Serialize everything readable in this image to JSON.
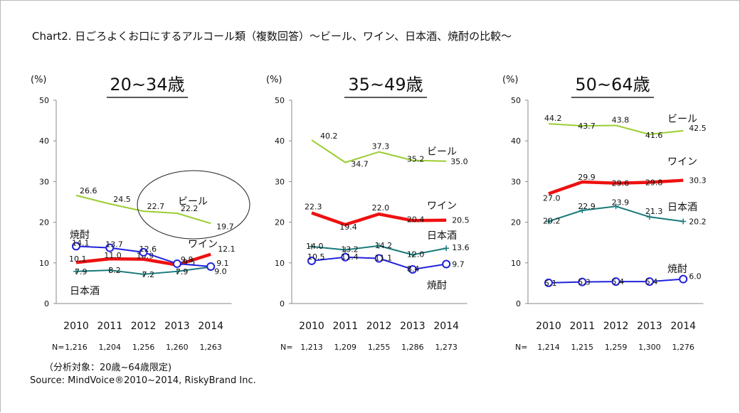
{
  "title": "Chart2. 日ごろよくお口にするアルコール類（複数回答）～ビール、ワイン、日本酒、焼酎の比較～",
  "note": "（分析対象：20歳~64歳限定)",
  "source": "Source: MindVoice®2010~2014, RiskyBrand Inc.",
  "n_label": "N=",
  "y_unit": "(%)",
  "colors": {
    "beer": "#9acd32",
    "wine": "#ee1111",
    "sake": "#1a7a7a",
    "shochu": "#2222dd"
  },
  "chart_data": [
    {
      "type": "line",
      "age_group": "20~34歳",
      "x": [
        "2010",
        "2011",
        "2012",
        "2013",
        "2014"
      ],
      "ylim": [
        0,
        50
      ],
      "yticks": [
        "0",
        "10",
        "20",
        "30",
        "40",
        "50"
      ],
      "n": [
        "1,216",
        "1,204",
        "1,256",
        "1,260",
        "1,263"
      ],
      "series": [
        {
          "key": "beer",
          "name": "ビール",
          "values": [
            26.6,
            24.5,
            22.7,
            22.2,
            19.7
          ]
        },
        {
          "key": "wine",
          "name": "ワイン",
          "values": [
            10.1,
            11.0,
            10.9,
            9.5,
            12.1
          ]
        },
        {
          "key": "sake",
          "name": "日本酒",
          "values": [
            7.9,
            8.2,
            7.2,
            7.9,
            9.0
          ]
        },
        {
          "key": "shochu",
          "name": "焼酎",
          "values": [
            14.1,
            13.7,
            12.6,
            9.8,
            9.1
          ]
        }
      ]
    },
    {
      "type": "line",
      "age_group": "35~49歳",
      "x": [
        "2010",
        "2011",
        "2012",
        "2013",
        "2014"
      ],
      "ylim": [
        0,
        50
      ],
      "yticks": [
        "0",
        "10",
        "20",
        "30",
        "40",
        "50"
      ],
      "n": [
        "1,213",
        "1,209",
        "1,255",
        "1,286",
        "1,273"
      ],
      "series": [
        {
          "key": "beer",
          "name": "ビール",
          "values": [
            40.2,
            34.7,
            37.3,
            35.2,
            35.0
          ]
        },
        {
          "key": "wine",
          "name": "ワイン",
          "values": [
            22.3,
            19.4,
            22.0,
            20.4,
            20.5
          ]
        },
        {
          "key": "sake",
          "name": "日本酒",
          "values": [
            14.0,
            13.2,
            14.2,
            12.0,
            13.6
          ]
        },
        {
          "key": "shochu",
          "name": "焼酎",
          "values": [
            10.5,
            11.4,
            11.1,
            8.4,
            9.7
          ]
        }
      ]
    },
    {
      "type": "line",
      "age_group": "50~64歳",
      "x": [
        "2010",
        "2011",
        "2012",
        "2013",
        "2014"
      ],
      "ylim": [
        0,
        50
      ],
      "yticks": [
        "0",
        "10",
        "20",
        "30",
        "40",
        "50"
      ],
      "n": [
        "1,214",
        "1,215",
        "1,259",
        "1,300",
        "1,276"
      ],
      "series": [
        {
          "key": "beer",
          "name": "ビール",
          "values": [
            44.2,
            43.7,
            43.8,
            41.6,
            42.5
          ]
        },
        {
          "key": "wine",
          "name": "ワイン",
          "values": [
            27.0,
            29.9,
            29.6,
            29.8,
            30.3
          ]
        },
        {
          "key": "sake",
          "name": "日本酒",
          "values": [
            20.2,
            22.9,
            23.9,
            21.3,
            20.2
          ]
        },
        {
          "key": "shochu",
          "name": "焼酎",
          "values": [
            5.1,
            5.3,
            5.4,
            5.4,
            6.0
          ]
        }
      ]
    }
  ]
}
